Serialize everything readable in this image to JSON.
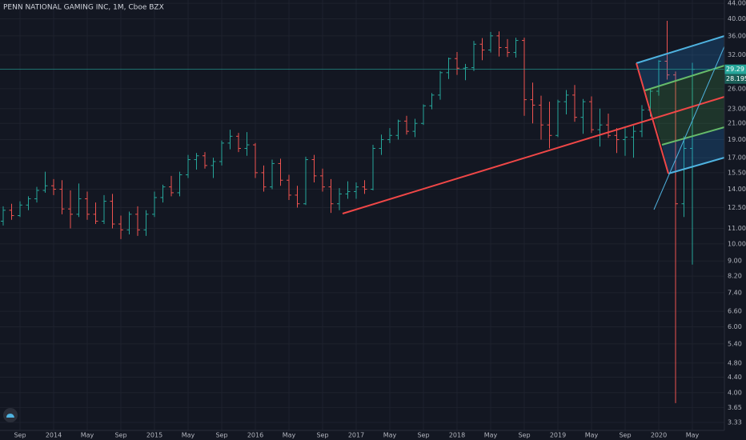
{
  "chart_data": {
    "type": "ohlc",
    "title": "PENN NATIONAL GAMING INC, 1M, Cboe BZX",
    "log_scale": true,
    "grid": true,
    "up_color": "#26a69a",
    "down_color": "#ef5350",
    "categories": [
      null,
      null,
      "Sep",
      null,
      null,
      null,
      "2014",
      null,
      null,
      null,
      "May",
      null,
      null,
      null,
      "Sep",
      null,
      null,
      null,
      "2015",
      null,
      null,
      null,
      "May",
      null,
      null,
      null,
      "Sep",
      null,
      null,
      null,
      "2016",
      null,
      null,
      null,
      "May",
      null,
      null,
      null,
      "Sep",
      null,
      null,
      null,
      "2017",
      null,
      null,
      null,
      "May",
      null,
      null,
      null,
      "Sep",
      null,
      null,
      null,
      "2018",
      null,
      null,
      null,
      "May",
      null,
      null,
      null,
      "Sep",
      null,
      null,
      null,
      "2019",
      null,
      null,
      null,
      "May",
      null,
      null,
      null,
      "Sep",
      null,
      null,
      null,
      "2020",
      null,
      null,
      null,
      "May"
    ],
    "open": [
      11.5,
      12.3,
      11.9,
      12.7,
      13.2,
      13.9,
      14.3,
      14.0,
      12.4,
      12.0,
      13.2,
      12.0,
      11.5,
      13.0,
      11.3,
      10.9,
      12.0,
      10.9,
      12.0,
      13.3,
      14.2,
      13.7,
      15.3,
      16.8,
      17.2,
      16.2,
      16.6,
      18.6,
      19.4,
      18.0,
      18.4,
      15.5,
      14.2,
      16.4,
      14.8,
      13.5,
      12.8,
      16.8,
      15.2,
      14.2,
      12.8,
      13.6,
      13.8,
      14.2,
      14.0,
      18.0,
      19.0,
      19.5,
      21.3,
      20.0,
      21.0,
      23.4,
      25.0,
      28.7,
      31.3,
      29.5,
      29.6,
      34.2,
      33.0,
      36.0,
      33.5,
      32.5,
      35.0,
      24.3,
      23.5,
      20.8,
      19.5,
      24.0,
      25.0,
      21.8,
      24.0,
      20.2,
      20.8,
      19.5,
      19.0,
      19.3,
      20.0,
      22.8,
      25.6,
      30.8,
      28.3,
      12.8,
      18.0
    ],
    "high": [
      12.6,
      12.8,
      13.0,
      13.4,
      14.2,
      15.6,
      14.9,
      14.8,
      13.9,
      14.5,
      13.8,
      12.9,
      13.5,
      13.6,
      11.9,
      12.2,
      12.6,
      12.3,
      13.8,
      14.4,
      15.2,
      15.6,
      17.3,
      17.5,
      17.6,
      17.0,
      18.9,
      20.2,
      19.8,
      19.9,
      18.6,
      16.2,
      16.8,
      16.9,
      15.3,
      14.3,
      17.1,
      17.3,
      15.9,
      14.9,
      14.1,
      14.7,
      14.6,
      14.8,
      18.4,
      19.6,
      20.4,
      21.5,
      22.0,
      21.6,
      23.6,
      25.3,
      29.0,
      31.5,
      32.6,
      30.3,
      34.9,
      35.5,
      36.9,
      37.0,
      35.3,
      35.6,
      35.6,
      27.0,
      24.9,
      24.0,
      24.3,
      25.8,
      26.6,
      24.4,
      24.8,
      23.0,
      22.3,
      20.4,
      20.6,
      20.7,
      23.5,
      26.0,
      31.0,
      39.5,
      28.9,
      19.4,
      30.5
    ],
    "low": [
      11.2,
      11.6,
      11.8,
      12.3,
      12.9,
      13.7,
      13.5,
      12.0,
      11.0,
      11.8,
      11.6,
      11.3,
      11.3,
      11.0,
      10.3,
      10.6,
      10.5,
      10.5,
      11.8,
      12.9,
      13.4,
      13.4,
      15.0,
      15.8,
      15.9,
      15.0,
      16.2,
      17.9,
      17.6,
      17.2,
      15.0,
      13.8,
      14.0,
      14.3,
      13.1,
      12.5,
      12.7,
      14.6,
      13.8,
      12.1,
      12.3,
      13.2,
      13.2,
      13.6,
      13.9,
      17.3,
      18.6,
      19.0,
      19.6,
      19.3,
      20.8,
      22.9,
      24.3,
      27.6,
      28.3,
      27.4,
      29.0,
      31.0,
      32.5,
      31.7,
      31.6,
      31.5,
      22.0,
      21.0,
      19.0,
      18.0,
      19.3,
      22.2,
      21.2,
      19.7,
      19.8,
      18.2,
      19.2,
      17.5,
      17.2,
      17.0,
      19.3,
      21.9,
      24.9,
      27.5,
      3.75,
      11.8,
      8.8
    ],
    "close": [
      12.3,
      11.9,
      12.7,
      13.2,
      13.9,
      14.3,
      14.0,
      12.4,
      12.0,
      13.2,
      12.0,
      11.5,
      13.0,
      11.3,
      10.9,
      12.0,
      10.9,
      12.0,
      13.3,
      14.2,
      13.7,
      15.3,
      16.8,
      17.2,
      16.2,
      16.6,
      18.6,
      19.4,
      18.0,
      18.4,
      15.5,
      14.2,
      16.4,
      14.8,
      13.5,
      12.8,
      16.8,
      15.2,
      14.2,
      12.8,
      13.6,
      13.8,
      14.2,
      14.0,
      18.0,
      19.0,
      19.5,
      21.3,
      20.0,
      21.0,
      23.4,
      25.0,
      28.7,
      31.3,
      29.5,
      29.6,
      34.2,
      33.0,
      36.0,
      33.5,
      32.5,
      35.0,
      24.3,
      23.5,
      20.8,
      19.5,
      24.0,
      25.0,
      21.8,
      24.0,
      20.2,
      20.8,
      19.5,
      19.0,
      19.3,
      20.0,
      22.8,
      25.6,
      30.8,
      28.3,
      12.8,
      18.0,
      29.29
    ],
    "ylim": [
      3.17,
      44.9
    ],
    "yticks": [
      {
        "value": 3.33,
        "label": "3.33"
      },
      {
        "value": 3.65,
        "label": "3.65"
      },
      {
        "value": 4,
        "label": "4.00"
      },
      {
        "value": 4.4,
        "label": "4.40"
      },
      {
        "value": 4.8,
        "label": "4.80"
      },
      {
        "value": 5.4,
        "label": "5.40"
      },
      {
        "value": 6,
        "label": "6.00"
      },
      {
        "value": 6.6,
        "label": "6.60"
      },
      {
        "value": 7.4,
        "label": "7.40"
      },
      {
        "value": 8.2,
        "label": "8.20"
      },
      {
        "value": 9,
        "label": "9.00"
      },
      {
        "value": 10,
        "label": "10.00"
      },
      {
        "value": 11,
        "label": "11.00"
      },
      {
        "value": 12.5,
        "label": "12.50"
      },
      {
        "value": 14,
        "label": "14.00"
      },
      {
        "value": 15.5,
        "label": "15.50"
      },
      {
        "value": 17,
        "label": "17.00"
      },
      {
        "value": 19,
        "label": "19.00"
      },
      {
        "value": 21,
        "label": "21.00"
      },
      {
        "value": 23,
        "label": "23.00"
      },
      {
        "value": 26,
        "label": "26.00"
      },
      {
        "value": 32,
        "label": "32.00"
      },
      {
        "value": 36,
        "label": "36.00"
      },
      {
        "value": 40,
        "label": "40.00"
      },
      {
        "value": 44,
        "label": "44.00"
      }
    ],
    "last_price": {
      "value": 29.29,
      "label": "29.29"
    },
    "secondary_label": "28.195"
  }
}
